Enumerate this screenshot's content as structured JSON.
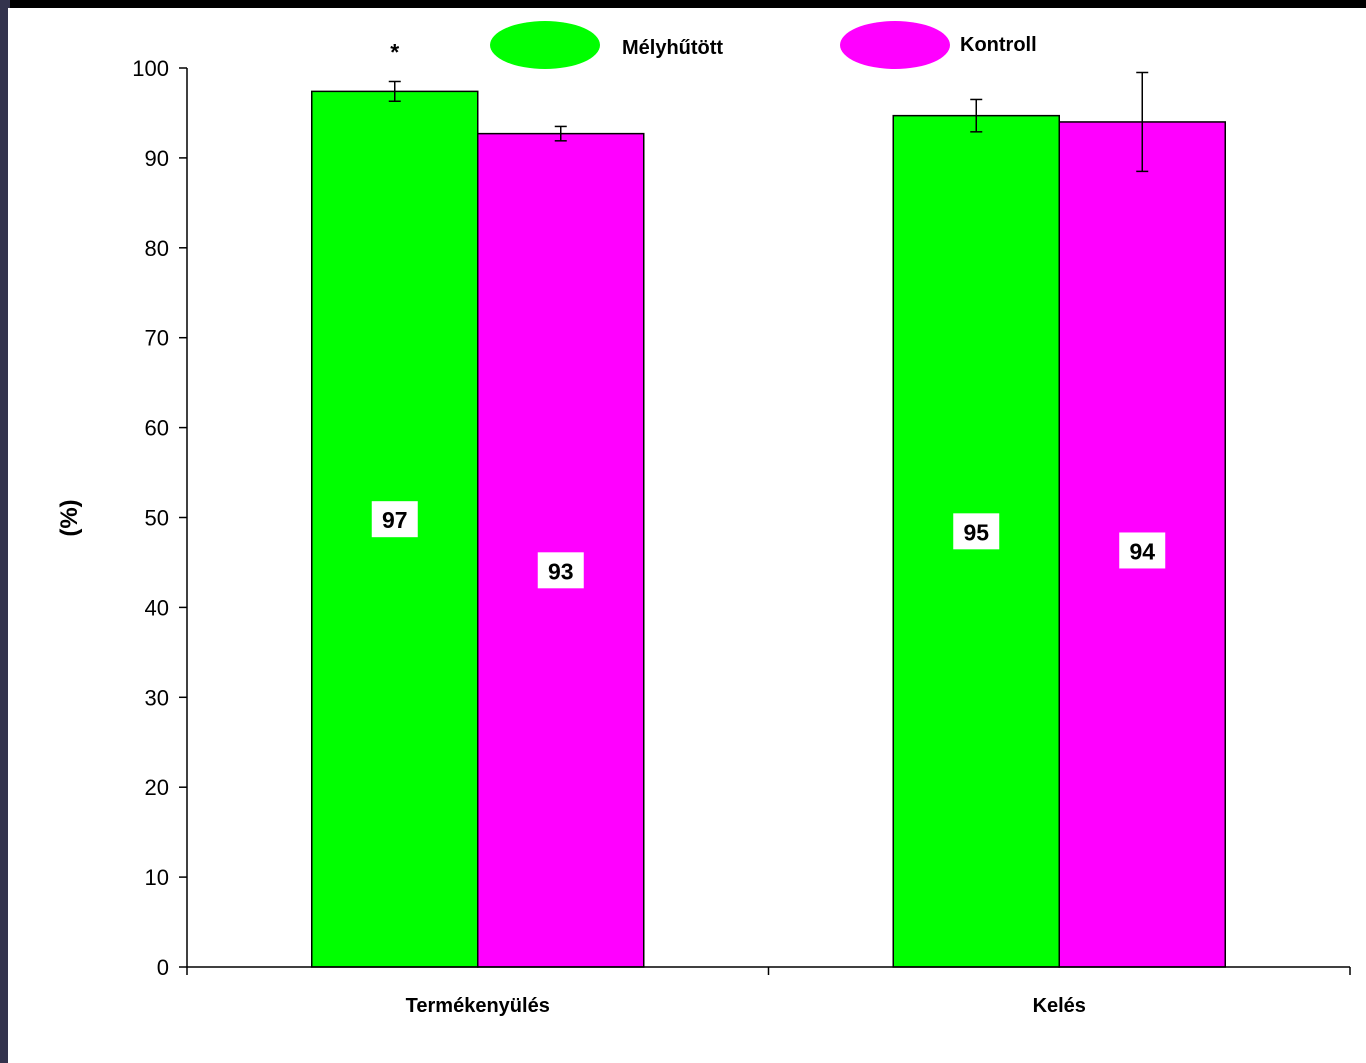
{
  "chart_data": {
    "type": "bar",
    "categories": [
      "Termékenyülés",
      "Kelés"
    ],
    "series": [
      {
        "name": "Mélyhűtött",
        "color": "#00ff00",
        "values": [
          97.4,
          94.7
        ],
        "error": [
          1.1,
          1.8
        ],
        "labels": [
          "97",
          "95"
        ]
      },
      {
        "name": "Kontroll",
        "color": "#ff00ff",
        "values": [
          92.7,
          94.0
        ],
        "error": [
          0.8,
          5.5
        ],
        "labels": [
          "93",
          "94"
        ]
      }
    ],
    "ylabel": "(%)",
    "xlabel": "",
    "ylim": [
      0,
      100
    ],
    "yticks": [
      0,
      10,
      20,
      30,
      40,
      50,
      60,
      70,
      80,
      90,
      100
    ],
    "ytick_labels": [
      "0",
      "10",
      "20",
      "30",
      "40",
      "50",
      "60",
      "70",
      "80",
      "90",
      "100"
    ],
    "annotations": [
      {
        "text": "*",
        "category": 0
      }
    ],
    "legend": "top",
    "grid": false
  }
}
